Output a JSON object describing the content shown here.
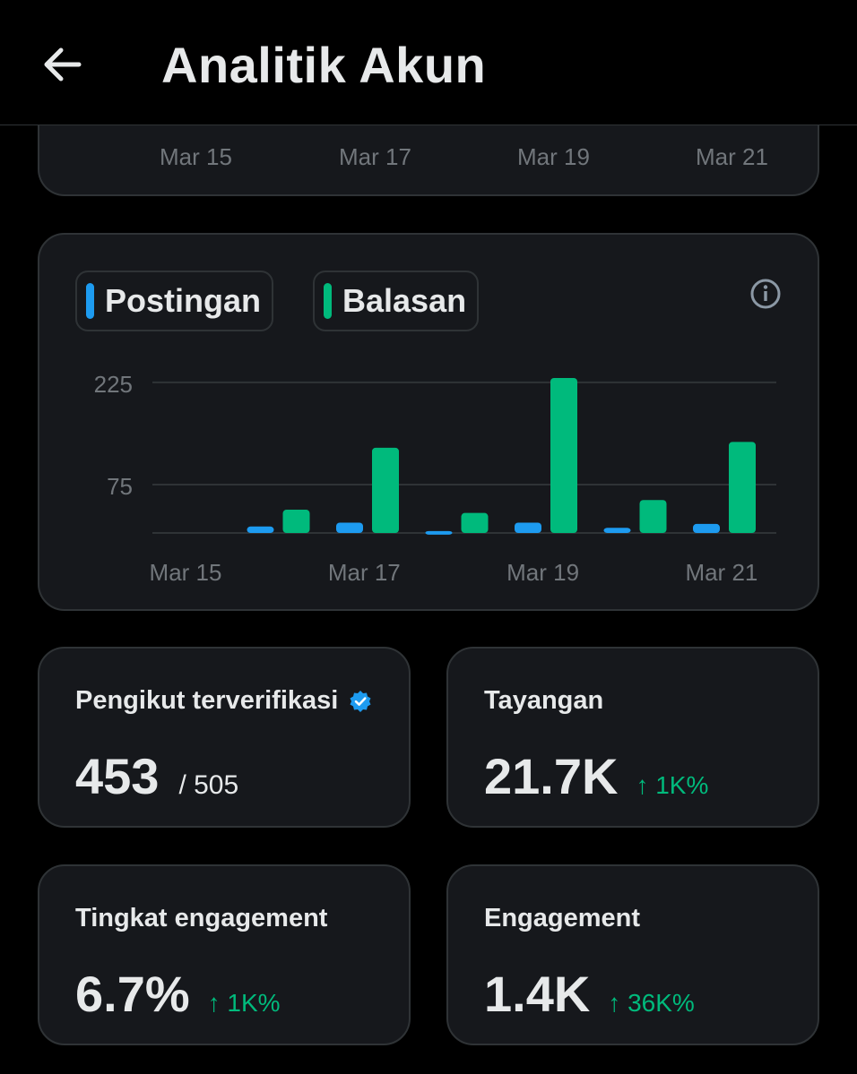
{
  "header": {
    "title": "Analitik Akun",
    "back_icon": "arrow-left-icon"
  },
  "top_chart": {
    "ticks": [
      "Mar 15",
      "Mar 17",
      "Mar 19",
      "Mar 21"
    ]
  },
  "legend": [
    {
      "label": "Postingan",
      "color": "#1d9bf0"
    },
    {
      "label": "Balasan",
      "color": "#00ba7c"
    }
  ],
  "chart_data": {
    "type": "bar",
    "categories": [
      "Mar 15",
      "Mar 16",
      "Mar 17",
      "Mar 18",
      "Mar 19",
      "Mar 20",
      "Mar 21"
    ],
    "x_tick_labels": [
      "Mar 15",
      "Mar 17",
      "Mar 19",
      "Mar 21"
    ],
    "y_tick_labels": [
      "225",
      "75"
    ],
    "y_ticks": [
      225,
      75
    ],
    "ylim": [
      0,
      240
    ],
    "grid": true,
    "legend_placement": "top-left",
    "series": [
      {
        "name": "Postingan",
        "color": "#1d9bf0",
        "values": [
          0,
          10,
          16,
          3,
          16,
          8,
          14
        ]
      },
      {
        "name": "Balasan",
        "color": "#00ba7c",
        "values": [
          0,
          36,
          132,
          31,
          240,
          51,
          141
        ]
      }
    ]
  },
  "stats": [
    {
      "label": "Pengikut terverifikasi",
      "value": "453",
      "sub": "/ 505",
      "trend": "",
      "verified": true
    },
    {
      "label": "Tayangan",
      "value": "21.7K",
      "sub": "",
      "trend": "↑ 1K%",
      "verified": false
    },
    {
      "label": "Tingkat engagement",
      "value": "6.7%",
      "sub": "",
      "trend": "↑ 1K%",
      "verified": false
    },
    {
      "label": "Engagement",
      "value": "1.4K",
      "sub": "",
      "trend": "↑ 36K%",
      "verified": false
    }
  ],
  "colors": {
    "accent_blue": "#1d9bf0",
    "accent_green": "#00ba7c",
    "card_bg": "#16181c",
    "border": "#2f3336"
  }
}
